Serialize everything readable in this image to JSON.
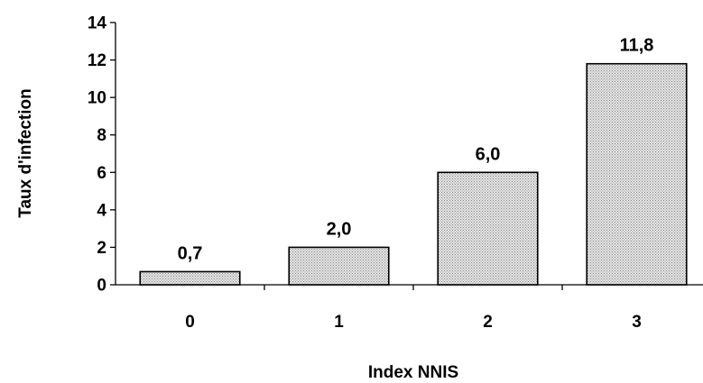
{
  "chart_data": {
    "type": "bar",
    "title": "",
    "xlabel": "Index NNIS",
    "ylabel": "Taux d'infection",
    "categories": [
      "0",
      "1",
      "2",
      "3"
    ],
    "values": [
      0.7,
      2.0,
      6.0,
      11.8
    ],
    "data_labels": [
      "0,7",
      "2,0",
      "6,0",
      "11,8"
    ],
    "ylim": [
      0,
      14
    ],
    "yticks": [
      0,
      2,
      4,
      6,
      8,
      10,
      12,
      14
    ],
    "ytick_labels": [
      "0",
      "2",
      "4",
      "6",
      "8",
      "10",
      "12",
      "14"
    ],
    "grid": false,
    "legend": "none",
    "bar_fill": "dotted-gray",
    "colors": {
      "bar_base": "#e4e4e4",
      "bar_dot": "#8c8c8c",
      "stroke": "#000000"
    }
  }
}
